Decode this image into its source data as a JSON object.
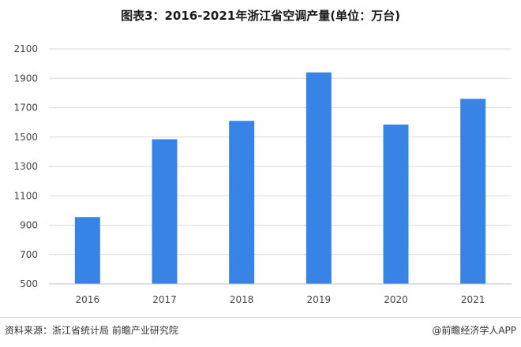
{
  "title": "图表3：2016-2021年浙江省空调产量(单位：万台)",
  "source_label": "资料来源：浙江省统计局 前瞻产业研究院",
  "credit_label": "@前瞻经济学人APP",
  "colors": {
    "bar": "#3784e6",
    "grid": "#d9d9d9",
    "axis": "#bfbfbf"
  },
  "chart_data": {
    "type": "bar",
    "title": "图表3：2016-2021年浙江省空调产量(单位：万台)",
    "xlabel": "",
    "ylabel": "",
    "categories": [
      "2016",
      "2017",
      "2018",
      "2019",
      "2020",
      "2021"
    ],
    "values": [
      955,
      1485,
      1610,
      1940,
      1585,
      1760
    ],
    "ylim": [
      500,
      2100
    ],
    "yticks": [
      500,
      700,
      900,
      1100,
      1300,
      1500,
      1700,
      1900,
      2100
    ],
    "grid": true,
    "legend": "none"
  }
}
